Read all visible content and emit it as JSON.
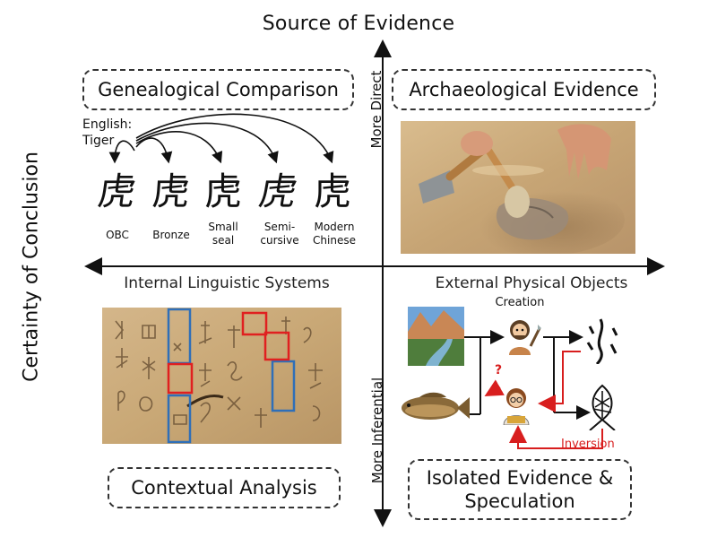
{
  "title_top": "Source of Evidence",
  "title_left": "Certainty of Conclusion",
  "vertical_axis": {
    "top_label": "More Direct",
    "bottom_label": "More Inferential"
  },
  "horizontal_axis": {
    "left_label": "Internal Linguistic Systems",
    "right_label": "External Physical Objects"
  },
  "quadrants": {
    "top_left": "Genealogical Comparison",
    "top_right": "Archaeological Evidence",
    "bottom_left": "Contextual Analysis",
    "bottom_right_line1": "Isolated Evidence &",
    "bottom_right_line2": "Speculation"
  },
  "genealogy": {
    "english_label": "English:",
    "english_word": "Tiger",
    "stages": [
      {
        "glyph": "虎",
        "label": "OBC"
      },
      {
        "glyph": "虎",
        "label": "Bronze"
      },
      {
        "glyph": "虎",
        "label_line1": "Small",
        "label_line2": "seal"
      },
      {
        "glyph": "虎",
        "label_line1": "Semi-",
        "label_line2": "cursive"
      },
      {
        "glyph": "虎",
        "label_line1": "Modern",
        "label_line2": "Chinese"
      }
    ]
  },
  "inference": {
    "creation_label": "Creation",
    "inversion_label": "Inversion",
    "question_mark": "?"
  },
  "colors": {
    "axis": "#111111",
    "dashed_border": "#333333",
    "red_highlight": "#e02020",
    "blue_highlight": "#2f6fb8",
    "sand": "#c9a77a",
    "bone": "#c8a774",
    "arrow_red": "#d81e1e"
  },
  "icons": [
    "landscape-photo",
    "fish-photo",
    "caveman-icon",
    "scholar-icon",
    "fish-pictograph-icon",
    "water-pictograph-icon"
  ]
}
